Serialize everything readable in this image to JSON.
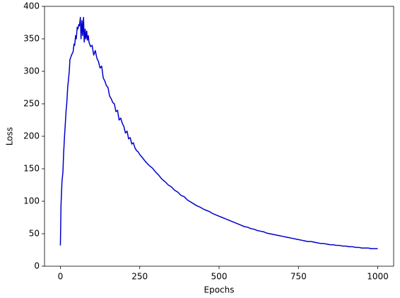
{
  "chart_data": {
    "type": "line",
    "x_label": "Epochs",
    "y_label": "Loss",
    "xlim": [
      -50,
      1050
    ],
    "ylim": [
      0,
      400
    ],
    "xticks": [
      0,
      250,
      500,
      750,
      1000
    ],
    "yticks": [
      0,
      50,
      100,
      150,
      200,
      250,
      300,
      350,
      400
    ],
    "grid": false,
    "x": [
      0,
      2,
      5,
      8,
      10,
      13,
      15,
      18,
      20,
      23,
      25,
      28,
      30,
      33,
      35,
      38,
      40,
      43,
      45,
      48,
      50,
      53,
      55,
      58,
      60,
      63,
      65,
      68,
      70,
      73,
      75,
      78,
      80,
      83,
      85,
      88,
      90,
      95,
      100,
      105,
      110,
      115,
      120,
      125,
      130,
      135,
      140,
      145,
      150,
      155,
      160,
      165,
      170,
      175,
      180,
      185,
      190,
      195,
      200,
      205,
      210,
      215,
      220,
      225,
      230,
      235,
      240,
      245,
      250,
      260,
      270,
      280,
      290,
      300,
      310,
      320,
      330,
      340,
      350,
      360,
      370,
      380,
      390,
      400,
      410,
      420,
      430,
      440,
      450,
      460,
      470,
      480,
      490,
      500,
      510,
      520,
      530,
      540,
      550,
      560,
      570,
      580,
      590,
      600,
      610,
      620,
      630,
      640,
      650,
      660,
      670,
      680,
      690,
      700,
      710,
      720,
      730,
      740,
      750,
      760,
      770,
      780,
      790,
      800,
      810,
      820,
      830,
      840,
      850,
      860,
      870,
      880,
      890,
      900,
      910,
      920,
      930,
      940,
      950,
      960,
      970,
      980,
      990,
      1000
    ],
    "series": [
      {
        "name": "Loss",
        "color": "#0000cc",
        "values": [
          32,
          95,
          130,
          145,
          172,
          200,
          215,
          240,
          250,
          275,
          285,
          300,
          318,
          322,
          325,
          328,
          330,
          342,
          340,
          355,
          350,
          368,
          365,
          372,
          370,
          383,
          350,
          378,
          355,
          383,
          345,
          365,
          350,
          362,
          348,
          355,
          345,
          338,
          340,
          325,
          332,
          320,
          315,
          305,
          308,
          290,
          285,
          278,
          275,
          262,
          258,
          252,
          250,
          238,
          240,
          225,
          228,
          220,
          215,
          205,
          208,
          196,
          198,
          188,
          190,
          182,
          178,
          176,
          172,
          166,
          160,
          155,
          151,
          145,
          140,
          134,
          130,
          125,
          122,
          117,
          114,
          109,
          107,
          102,
          99,
          96,
          93,
          91,
          88,
          86,
          84,
          81,
          79,
          77,
          75,
          73,
          71,
          69,
          67,
          65,
          63,
          61,
          60,
          58,
          57,
          55,
          54,
          53,
          51,
          50,
          49,
          48,
          47,
          46,
          45,
          44,
          43,
          42,
          41,
          40,
          39,
          38,
          38,
          37,
          36,
          35,
          35,
          34,
          33,
          33,
          32,
          32,
          31,
          31,
          30,
          30,
          29,
          29,
          28,
          28,
          28,
          27,
          27,
          27
        ]
      }
    ]
  }
}
